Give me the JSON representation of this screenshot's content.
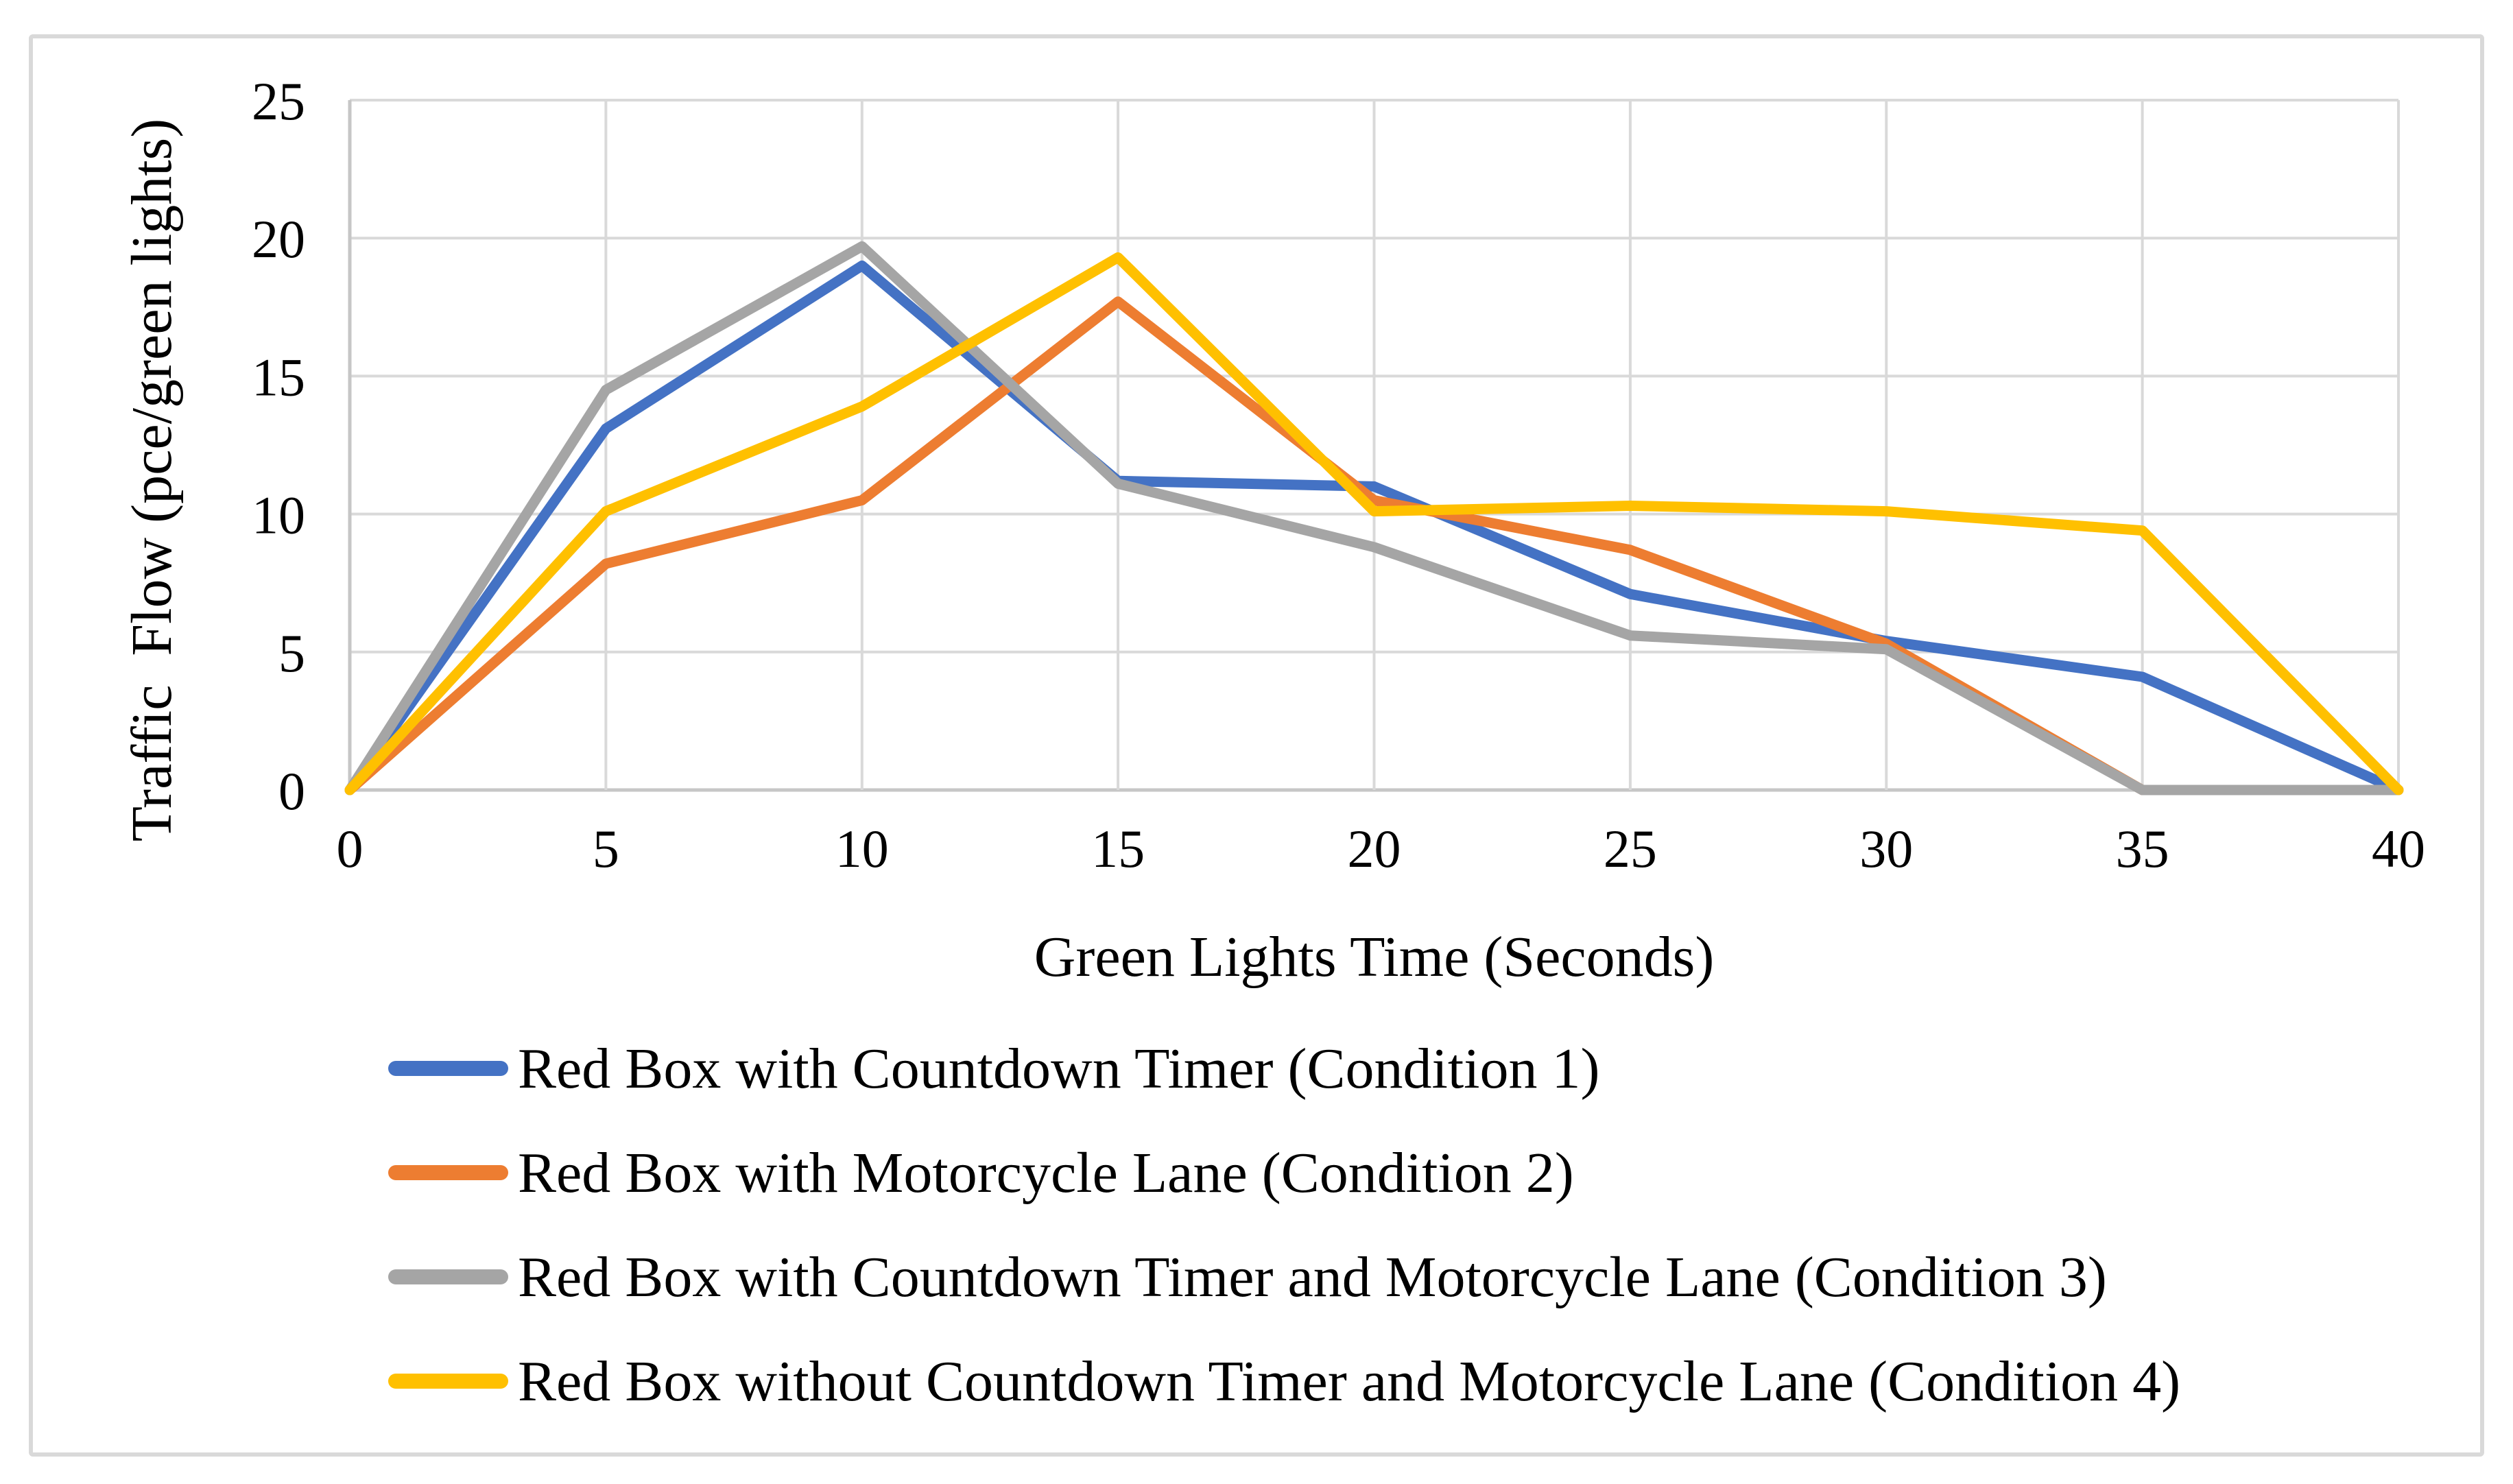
{
  "chart_data": {
    "type": "line",
    "title": "",
    "xlabel": "Green Lights Time (Seconds)",
    "ylabel": "Traffic  Flow (pce/green lights)",
    "x": [
      0,
      5,
      10,
      15,
      20,
      25,
      30,
      35,
      40
    ],
    "x_ticks": [
      0,
      5,
      10,
      15,
      20,
      25,
      30,
      35,
      40
    ],
    "y_ticks": [
      0,
      5,
      10,
      15,
      20,
      25
    ],
    "xlim": [
      0,
      40
    ],
    "ylim": [
      0,
      25
    ],
    "grid": true,
    "legend_position": "bottom-left",
    "series": [
      {
        "name": "Red Box with Countdown Timer (Condition 1)",
        "color": "#4472C4",
        "values": [
          0,
          13.1,
          19.0,
          11.2,
          11.0,
          7.1,
          5.4,
          4.1,
          0
        ]
      },
      {
        "name": "Red Box with Motorcycle Lane (Condition 2)",
        "color": "#ED7D31",
        "values": [
          0,
          8.2,
          10.5,
          17.7,
          10.5,
          8.7,
          5.3,
          0,
          0
        ]
      },
      {
        "name": "Red Box with Countdown Timer and Motorcycle Lane (Condition 3)",
        "color": "#A5A5A5",
        "values": [
          0,
          14.5,
          19.7,
          11.1,
          8.8,
          5.6,
          5.1,
          0,
          0
        ]
      },
      {
        "name": "Red Box without Countdown Timer and Motorcycle Lane (Condition 4)",
        "color": "#FFC000",
        "values": [
          0,
          10.1,
          13.9,
          19.3,
          10.1,
          10.3,
          10.1,
          9.4,
          0
        ]
      }
    ],
    "colors": {
      "gridline": "#D9D9D9",
      "axis": "#C6C6C6",
      "frame": "#D9D9D9",
      "text": "#000000",
      "background": "#FFFFFF"
    }
  }
}
